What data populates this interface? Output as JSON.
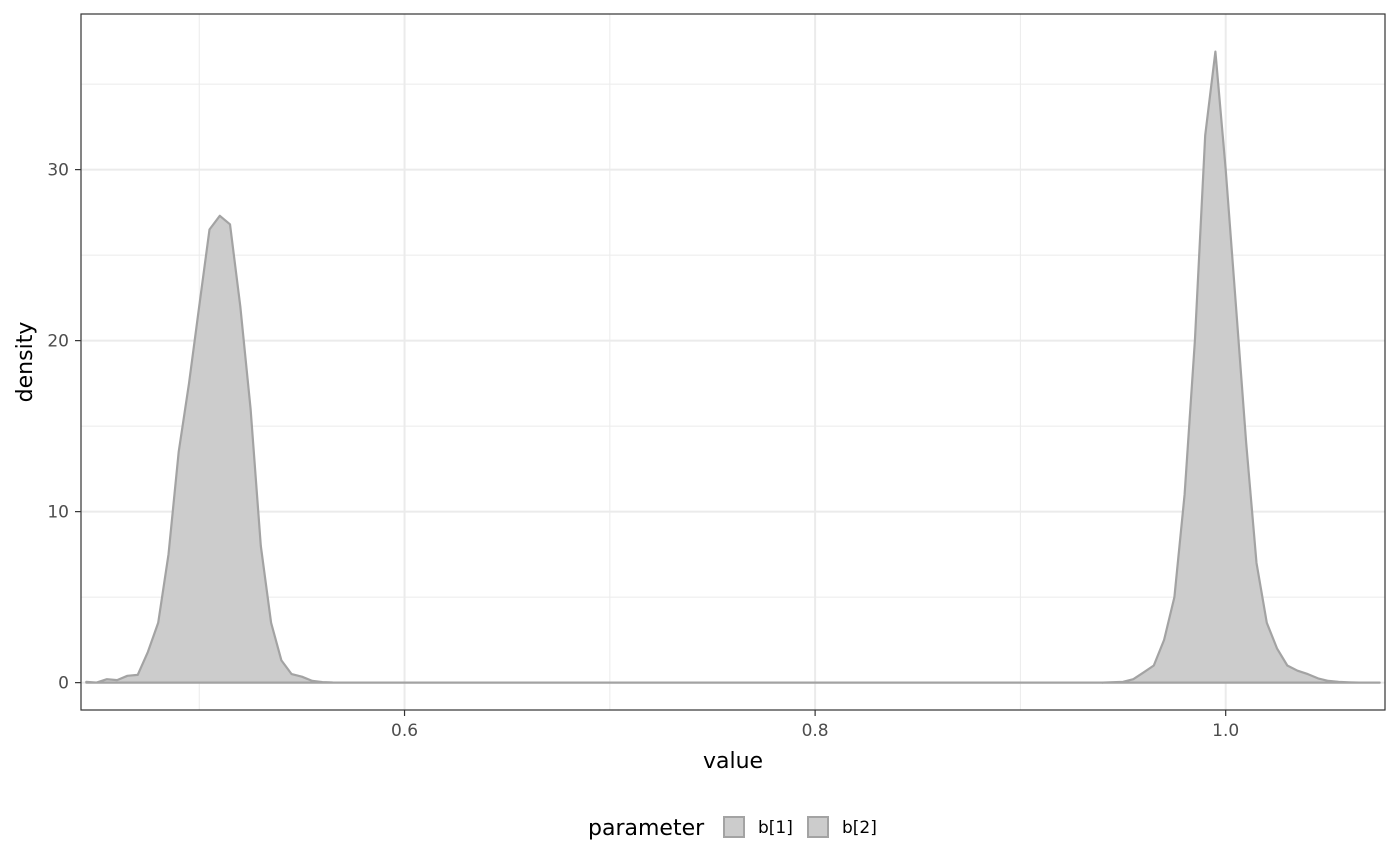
{
  "chart_data": {
    "type": "area",
    "title": "",
    "xlabel": "value",
    "ylabel": "density",
    "xlim": [
      0.4424,
      1.0776
    ],
    "ylim": [
      -1.6,
      39.1
    ],
    "x_ticks": [
      0.6,
      0.8,
      1.0
    ],
    "x_tick_labels": [
      "0.6",
      "0.8",
      "1.0"
    ],
    "y_ticks": [
      0,
      10,
      20,
      30
    ],
    "y_tick_labels": [
      "0",
      "10",
      "20",
      "30"
    ],
    "grid": true,
    "legend": {
      "title": "parameter",
      "position": "bottom",
      "entries": [
        "b[1]",
        "b[2]"
      ]
    },
    "colors": {
      "fill": "#cccccc",
      "stroke": "#a3a3a3",
      "panel_border": "#333333",
      "grid": "#ebebeb"
    },
    "series": [
      {
        "name": "b[1]",
        "x": [
          0.445,
          0.45,
          0.455,
          0.46,
          0.465,
          0.47,
          0.475,
          0.48,
          0.485,
          0.49,
          0.495,
          0.5,
          0.505,
          0.51,
          0.515,
          0.52,
          0.525,
          0.53,
          0.535,
          0.54,
          0.545,
          0.55,
          0.555,
          0.56,
          0.565,
          0.57,
          0.6,
          0.8,
          0.94
        ],
        "y": [
          0.05,
          0.0,
          0.2,
          0.15,
          0.4,
          0.45,
          1.8,
          3.5,
          7.5,
          13.5,
          17.5,
          22.0,
          26.5,
          27.3,
          26.8,
          22.0,
          16.0,
          8.0,
          3.5,
          1.3,
          0.5,
          0.35,
          0.1,
          0.03,
          0.01,
          0.0,
          0.0,
          0.0,
          0.0
        ]
      },
      {
        "name": "b[2]",
        "x": [
          0.94,
          0.95,
          0.955,
          0.96,
          0.965,
          0.97,
          0.975,
          0.98,
          0.985,
          0.99,
          0.995,
          1.0,
          1.005,
          1.01,
          1.015,
          1.02,
          1.025,
          1.03,
          1.035,
          1.04,
          1.045,
          1.05,
          1.055,
          1.06,
          1.065,
          1.07,
          1.075
        ],
        "y": [
          0.0,
          0.05,
          0.2,
          0.6,
          1.0,
          2.5,
          5.0,
          11.0,
          20.0,
          32.0,
          36.9,
          30.0,
          22.0,
          14.0,
          7.0,
          3.5,
          2.0,
          1.0,
          0.7,
          0.5,
          0.25,
          0.1,
          0.05,
          0.02,
          0.0,
          0.0,
          0.0
        ]
      }
    ]
  }
}
